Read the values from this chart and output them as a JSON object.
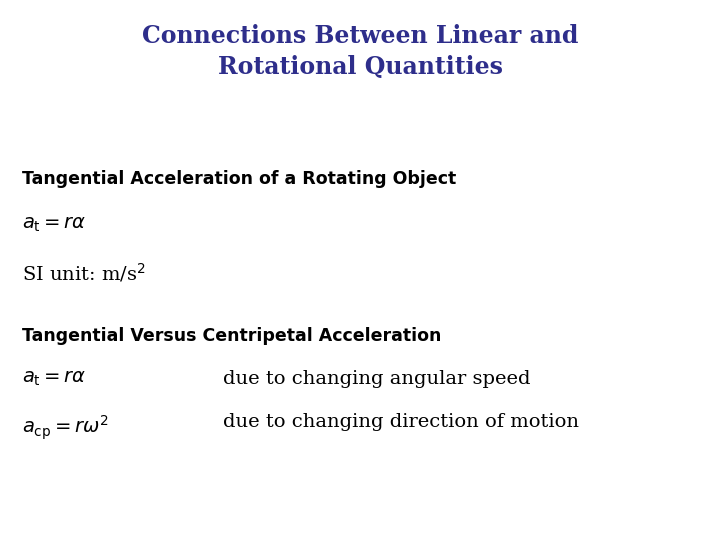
{
  "title_line1": "Connections Between Linear and",
  "title_line2": "Rotational Quantities",
  "title_color": "#2E2E8B",
  "title_fontsize": 17,
  "background_color": "#FFFFFF",
  "section1_heading": "Tangential Acceleration of a Rotating Object",
  "section1_heading_fontsize": 12.5,
  "section1_eq": "$a_\\mathrm{t} = r\\alpha$",
  "section1_eq_fontsize": 14,
  "section1_si": "SI unit: m/s$^2$",
  "section1_si_fontsize": 14,
  "section2_heading": "Tangential Versus Centripetal Acceleration",
  "section2_heading_fontsize": 12.5,
  "section2_eq1": "$a_\\mathrm{t} = r\\alpha$",
  "section2_eq1_desc": "due to changing angular speed",
  "section2_eq2": "$a_\\mathrm{cp} = r\\omega^2$",
  "section2_eq2_desc": "due to changing direction of motion",
  "section2_eq_fontsize": 14,
  "section2_desc_fontsize": 14
}
